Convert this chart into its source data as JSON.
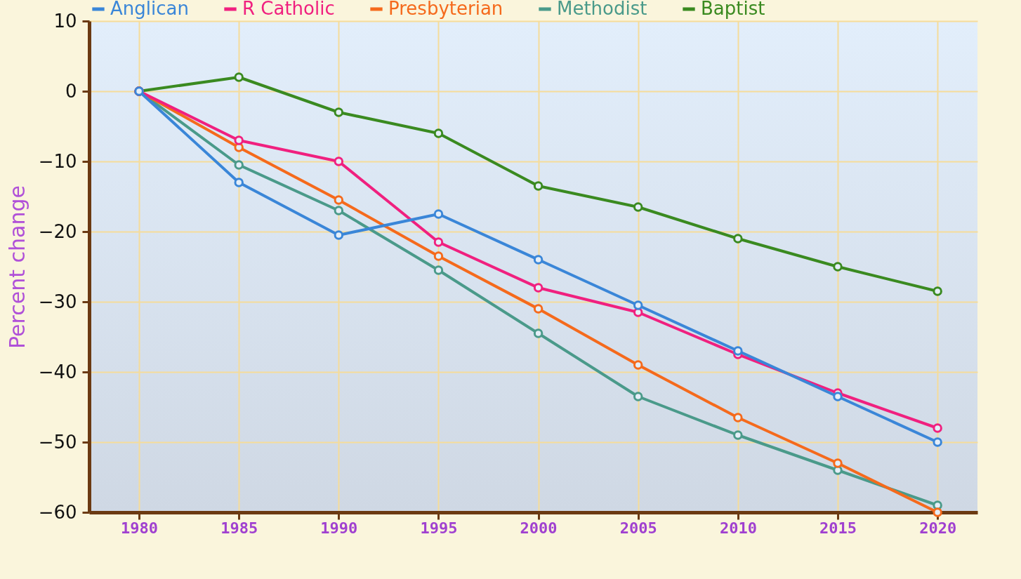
{
  "chart_data": {
    "type": "line",
    "ylabel": "Percent change",
    "x": [
      1980,
      1985,
      1990,
      1995,
      2000,
      2005,
      2010,
      2015,
      2020
    ],
    "series": [
      {
        "name": "Anglican",
        "color": "#3a86d8",
        "values": [
          0,
          -13,
          -20.5,
          -17.5,
          -24,
          -30.5,
          -37,
          -43.5,
          -50
        ]
      },
      {
        "name": "R Catholic",
        "color": "#f0207f",
        "values": [
          0,
          -7,
          -10,
          -21.5,
          -28,
          -31.5,
          -37.5,
          -43,
          -48
        ]
      },
      {
        "name": "Presbyterian",
        "color": "#f56a1c",
        "values": [
          0,
          -8,
          -15.5,
          -23.5,
          -31,
          -39,
          -46.5,
          -53,
          -60
        ]
      },
      {
        "name": "Methodist",
        "color": "#4a9a8a",
        "values": [
          0,
          -10.5,
          -17,
          -25.5,
          -34.5,
          -43.5,
          -49,
          -54,
          -59
        ]
      },
      {
        "name": "Baptist",
        "color": "#3a8a20",
        "values": [
          0,
          2,
          -3,
          -6,
          -13.5,
          -16.5,
          -21,
          -25,
          -28.5
        ]
      }
    ],
    "xlim": [
      1977.5,
      2022
    ],
    "xticks": [
      1980,
      1985,
      1990,
      1995,
      2000,
      2005,
      2010,
      2015,
      2020
    ],
    "ylim": [
      -60,
      10
    ],
    "yticks": [
      -60,
      -50,
      -40,
      -30,
      -20,
      -10,
      0,
      10
    ],
    "grid": true,
    "legend": "top",
    "marker": "circle",
    "line_style": "solid"
  }
}
